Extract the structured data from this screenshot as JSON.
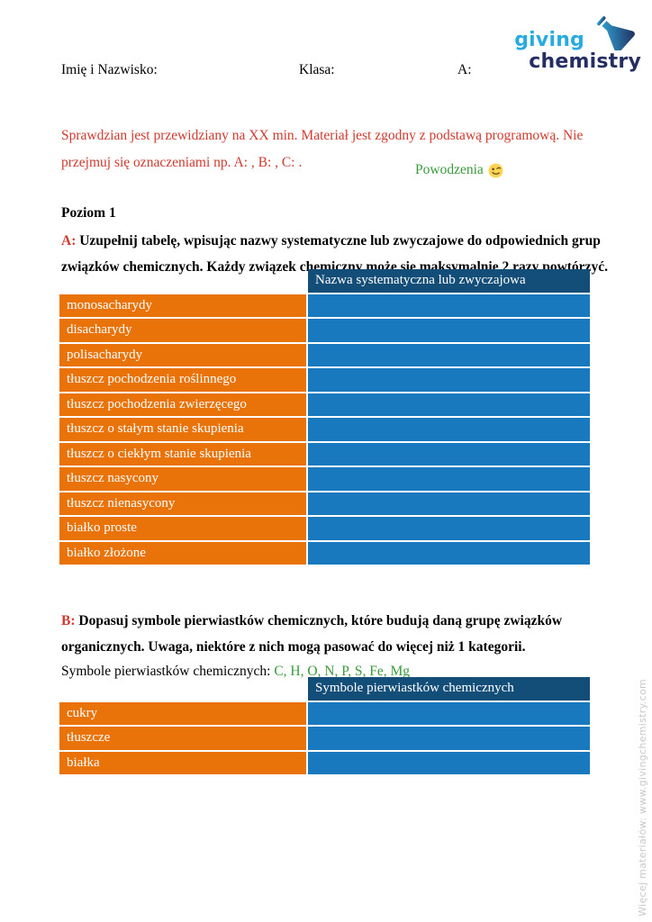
{
  "logo": {
    "word1": "giving",
    "word2": "chemistry",
    "light_blue": "#29abe2",
    "dark_navy": "#252e63"
  },
  "header_fields": {
    "name_label": "Imię i Nazwisko:",
    "class_label": "Klasa:",
    "variant_label": "A:"
  },
  "intro": {
    "text": "Sprawdzian jest przewidziany na XX min. Materiał jest zgodny z podstawą programową. Nie przejmuj się oznaczeniami np. A: , B: , C: .",
    "color": "#d03b30"
  },
  "good_luck": {
    "text": "Powodzenia",
    "emoji": "winking-face",
    "color": "#3a9a3c"
  },
  "level_heading": "Poziom 1",
  "task_a": {
    "prefix": "A:",
    "text": " Uzupełnij tabelę, wpisując nazwy systematyczne lub zwyczajowe do odpowiednich grup związków chemicznych. Każdy związek chemiczny może się maksymalnie 2 razy powtórzyć."
  },
  "table_a": {
    "header": "Nazwa systematyczna lub zwyczajowa",
    "rows": [
      "monosacharydy",
      "disacharydy",
      "polisacharydy",
      "tłuszcz pochodzenia roślinnego",
      "tłuszcz pochodzenia zwierzęcego",
      "tłuszcz o stałym stanie skupienia",
      "tłuszcz o ciekłym stanie skupienia",
      "tłuszcz nasycony",
      "tłuszcz nienasycony",
      "białko proste",
      "białko złożone"
    ],
    "colors": {
      "header_bg": "#134e78",
      "label_bg": "#e97309",
      "answer_bg": "#1879bf"
    }
  },
  "task_b": {
    "prefix": "B:",
    "text": " Dopasuj symbole pierwiastków chemicznych, które budują daną grupę związków organicznych. Uwaga, niektóre z nich mogą pasować do więcej niż 1 kategorii."
  },
  "symbols_line": {
    "label": "Symbole pierwiastków chemicznych: ",
    "symbols": "C, H, O, N, P, S, Fe, Mg"
  },
  "table_b": {
    "header": "Symbole pierwiastków chemicznych",
    "rows": [
      "cukry",
      "tłuszcze",
      "białka"
    ]
  },
  "side_note": "Więcej materiałów: www.givingchemistry.com"
}
